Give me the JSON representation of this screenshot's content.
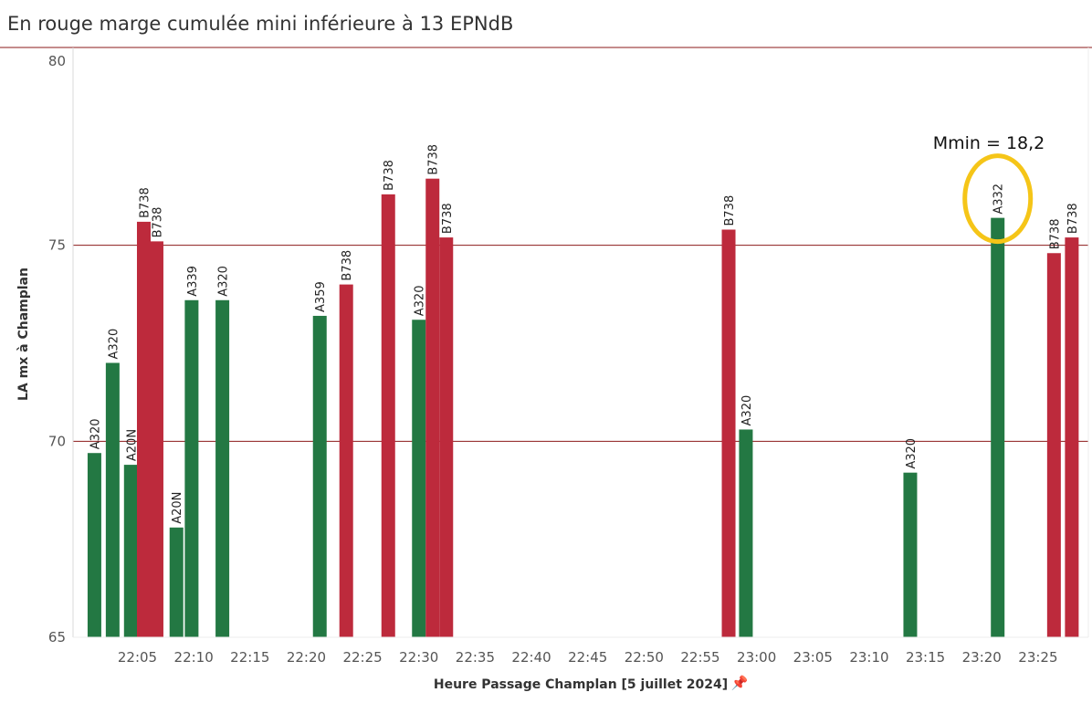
{
  "title": "En rouge marge cumulée mini inférieure à 13 EPNdB",
  "chart_data": {
    "type": "bar",
    "title": "En rouge marge cumulée mini inférieure à 13 EPNdB",
    "xlabel": "Heure Passage Champlan [5 juillet 2024]",
    "ylabel": "LA mx à Champlan",
    "ylim": [
      65,
      80
    ],
    "yticks": [
      65,
      70,
      75,
      80
    ],
    "reference_lines": [
      70,
      75,
      80
    ],
    "xlim": [
      "22:00",
      "23:30"
    ],
    "xticks": [
      "22:05",
      "22:10",
      "22:15",
      "22:20",
      "22:25",
      "22:30",
      "22:35",
      "22:40",
      "22:45",
      "22:50",
      "22:55",
      "23:00",
      "23:05",
      "23:10",
      "23:15",
      "23:20",
      "23:25"
    ],
    "colors": {
      "green": "#237843",
      "red": "#bd2a3c",
      "refline": "#8b1a1a"
    },
    "bars": [
      {
        "time": "22:01:11",
        "aircraft": "A320",
        "value": 69.7,
        "color": "green"
      },
      {
        "time": "22:02:48",
        "aircraft": "A320",
        "value": 72.0,
        "color": "green"
      },
      {
        "time": "22:04:25",
        "aircraft": "A20N",
        "value": 69.4,
        "color": "green"
      },
      {
        "time": "22:05:34",
        "aircraft": "B738",
        "value": 75.6,
        "color": "red"
      },
      {
        "time": "22:06:42",
        "aircraft": "B738",
        "value": 75.1,
        "color": "red"
      },
      {
        "time": "22:08:28",
        "aircraft": "A20N",
        "value": 67.8,
        "color": "green"
      },
      {
        "time": "22:09:49",
        "aircraft": "A339",
        "value": 73.6,
        "color": "green"
      },
      {
        "time": "22:12:33",
        "aircraft": "A320",
        "value": 73.6,
        "color": "green"
      },
      {
        "time": "22:21:12",
        "aircraft": "A359",
        "value": 73.2,
        "color": "green"
      },
      {
        "time": "22:23:33",
        "aircraft": "B738",
        "value": 74.0,
        "color": "red"
      },
      {
        "time": "22:27:17",
        "aircraft": "B738",
        "value": 76.3,
        "color": "red"
      },
      {
        "time": "22:30:00",
        "aircraft": "A320",
        "value": 73.1,
        "color": "green"
      },
      {
        "time": "22:31:13",
        "aircraft": "B738",
        "value": 76.7,
        "color": "red"
      },
      {
        "time": "22:32:26",
        "aircraft": "B738",
        "value": 75.2,
        "color": "red"
      },
      {
        "time": "22:57:31",
        "aircraft": "B738",
        "value": 75.4,
        "color": "red"
      },
      {
        "time": "22:59:03",
        "aircraft": "A320",
        "value": 70.3,
        "color": "green"
      },
      {
        "time": "23:13:39",
        "aircraft": "A320",
        "value": 69.2,
        "color": "green"
      },
      {
        "time": "23:21:25",
        "aircraft": "A332",
        "value": 75.7,
        "color": "green",
        "highlighted": true
      },
      {
        "time": "23:26:25",
        "aircraft": "B738",
        "value": 74.8,
        "color": "red"
      },
      {
        "time": "23:28:00",
        "aircraft": "B738",
        "value": 75.2,
        "color": "red"
      }
    ],
    "annotation": {
      "text": "Mmin = 18,2",
      "target": "A332",
      "highlight_color": "#f5c518"
    }
  }
}
